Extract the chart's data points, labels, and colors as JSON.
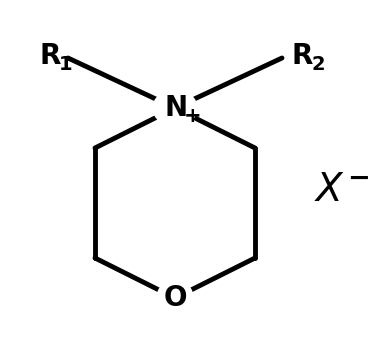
{
  "background_color": "#ffffff",
  "line_color": "#000000",
  "line_width": 3.5,
  "fig_width": 3.9,
  "fig_height": 3.61,
  "font_size_atom": 20,
  "font_size_sub": 14,
  "font_size_charge": 14,
  "font_size_X": 28
}
